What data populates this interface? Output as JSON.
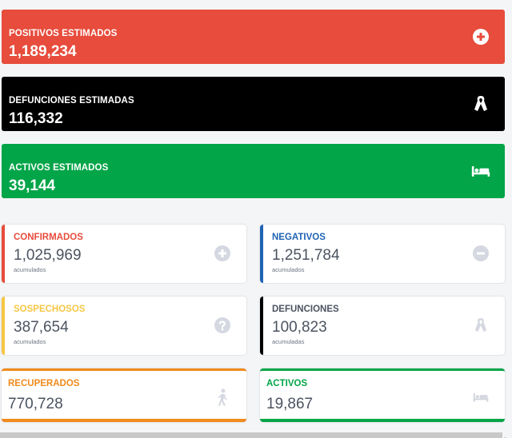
{
  "top_cards": {
    "positivos": {
      "label": "POSITIVOS ESTIMADOS",
      "value": "1,189,234",
      "color": "#e74c3c",
      "icon": "plus-circle-icon"
    },
    "defunciones": {
      "label": "DEFUNCIONES ESTIMADAS",
      "value": "116,332",
      "color": "#000000",
      "icon": "ribbon-icon"
    },
    "activos": {
      "label": "ACTIVOS ESTIMADOS",
      "value": "39,144",
      "color": "#02a548",
      "icon": "bed-icon"
    }
  },
  "stat_cards": {
    "confirmados": {
      "label": "CONFIRMADOS",
      "value": "1,025,969",
      "sub": "acumulados",
      "color": "#e74c3c",
      "icon": "plus-circle-icon"
    },
    "negativos": {
      "label": "NEGATIVOS",
      "value": "1,251,784",
      "sub": "acumulados",
      "color": "#1f63b3",
      "icon": "minus-circle-icon"
    },
    "sospechosos": {
      "label": "SOSPECHOSOS",
      "value": "387,654",
      "sub": "acumulados",
      "color": "#f6c744",
      "icon": "question-circle-icon"
    },
    "defunciones": {
      "label": "DEFUNCIONES",
      "value": "100,823",
      "sub": "acumuladas",
      "color": "#000000",
      "icon": "ribbon-icon"
    },
    "recuperados": {
      "label": "RECUPERADOS",
      "value": "770,728",
      "color": "#f08a1c",
      "icon": "walking-person-icon"
    },
    "activos": {
      "label": "ACTIVOS",
      "value": "19,867",
      "color": "#02a548",
      "icon": "bed-icon"
    }
  },
  "colors": {
    "icon_gray": "#d5d8e0"
  }
}
